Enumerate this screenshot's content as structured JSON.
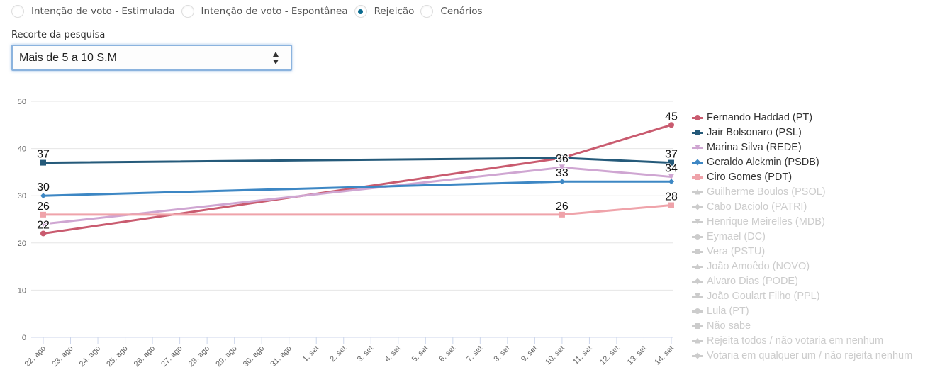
{
  "radios": [
    {
      "label": "Intenção de voto - Estimulada",
      "checked": false
    },
    {
      "label": "Intenção de voto - Espontânea",
      "checked": false
    },
    {
      "label": "Rejeição",
      "checked": true
    },
    {
      "label": "Cenários",
      "checked": false
    }
  ],
  "recorte": {
    "label": "Recorte da pesquisa",
    "selected": "Mais de 5 a 10 S.M"
  },
  "chart_data": {
    "type": "line",
    "title": "",
    "xlabel": "",
    "ylabel": "",
    "ylim": [
      0,
      50
    ],
    "yticks": [
      0,
      10,
      20,
      30,
      40,
      50
    ],
    "grid": true,
    "legend_position": "right",
    "x_categories": [
      "22. ago",
      "23. ago",
      "24. ago",
      "25. ago",
      "26. ago",
      "27. ago",
      "28. ago",
      "29. ago",
      "30. ago",
      "31. ago",
      "1. set",
      "2. set",
      "3. set",
      "4. set",
      "5. set",
      "6. set",
      "7. set",
      "8. set",
      "9. set",
      "10. set",
      "11. set",
      "12. set",
      "13. set",
      "14. set"
    ],
    "series": [
      {
        "name": "Fernando Haddad (PT)",
        "color": "#c95b6f",
        "marker": "circle",
        "active": true,
        "points": [
          {
            "x": "22. ago",
            "y": 22,
            "label": "22"
          },
          {
            "x": "10. set",
            "y": 38
          },
          {
            "x": "14. set",
            "y": 45,
            "label": "45"
          }
        ]
      },
      {
        "name": "Jair Bolsonaro (PSL)",
        "color": "#255a7a",
        "marker": "square",
        "active": true,
        "points": [
          {
            "x": "22. ago",
            "y": 37,
            "label": "37"
          },
          {
            "x": "10. set",
            "y": 38
          },
          {
            "x": "14. set",
            "y": 37,
            "label": "37"
          }
        ]
      },
      {
        "name": "Marina Silva (REDE)",
        "color": "#cfa6d2",
        "marker": "triangle-down",
        "active": true,
        "points": [
          {
            "x": "22. ago",
            "y": 24
          },
          {
            "x": "10. set",
            "y": 36,
            "label": "36"
          },
          {
            "x": "14. set",
            "y": 34,
            "label": "34"
          }
        ]
      },
      {
        "name": "Geraldo Alckmin (PSDB)",
        "color": "#3d87c4",
        "marker": "diamond",
        "active": true,
        "points": [
          {
            "x": "22. ago",
            "y": 30,
            "label": "30"
          },
          {
            "x": "10. set",
            "y": 33,
            "label": "33"
          },
          {
            "x": "14. set",
            "y": 33
          }
        ]
      },
      {
        "name": "Ciro Gomes (PDT)",
        "color": "#efa3aa",
        "marker": "square",
        "active": true,
        "points": [
          {
            "x": "22. ago",
            "y": 26,
            "label": "26"
          },
          {
            "x": "10. set",
            "y": 26,
            "label": "26"
          },
          {
            "x": "14. set",
            "y": 28,
            "label": "28"
          }
        ]
      },
      {
        "name": "Guilherme Boulos (PSOL)",
        "color": "#cccccc",
        "marker": "triangle",
        "active": false,
        "points": []
      },
      {
        "name": "Cabo Daciolo (PATRI)",
        "color": "#cccccc",
        "marker": "diamond",
        "active": false,
        "points": []
      },
      {
        "name": "Henrique Meirelles (MDB)",
        "color": "#cccccc",
        "marker": "triangle-down",
        "active": false,
        "points": []
      },
      {
        "name": "Eymael (DC)",
        "color": "#cccccc",
        "marker": "circle",
        "active": false,
        "points": []
      },
      {
        "name": "Vera (PSTU)",
        "color": "#cccccc",
        "marker": "square",
        "active": false,
        "points": []
      },
      {
        "name": "João Amoêdo (NOVO)",
        "color": "#cccccc",
        "marker": "triangle",
        "active": false,
        "points": []
      },
      {
        "name": "Alvaro Dias (PODE)",
        "color": "#cccccc",
        "marker": "diamond",
        "active": false,
        "points": []
      },
      {
        "name": "João Goulart Filho (PPL)",
        "color": "#cccccc",
        "marker": "triangle-down",
        "active": false,
        "points": []
      },
      {
        "name": "Lula (PT)",
        "color": "#cccccc",
        "marker": "circle",
        "active": false,
        "points": []
      },
      {
        "name": "Não sabe",
        "color": "#cccccc",
        "marker": "square",
        "active": false,
        "points": []
      },
      {
        "name": "Rejeita todos / não votaria em nenhum",
        "color": "#cccccc",
        "marker": "triangle",
        "active": false,
        "points": []
      },
      {
        "name": "Votaria em qualquer um / não rejeita nenhum",
        "color": "#cccccc",
        "marker": "diamond",
        "active": false,
        "points": []
      }
    ]
  }
}
